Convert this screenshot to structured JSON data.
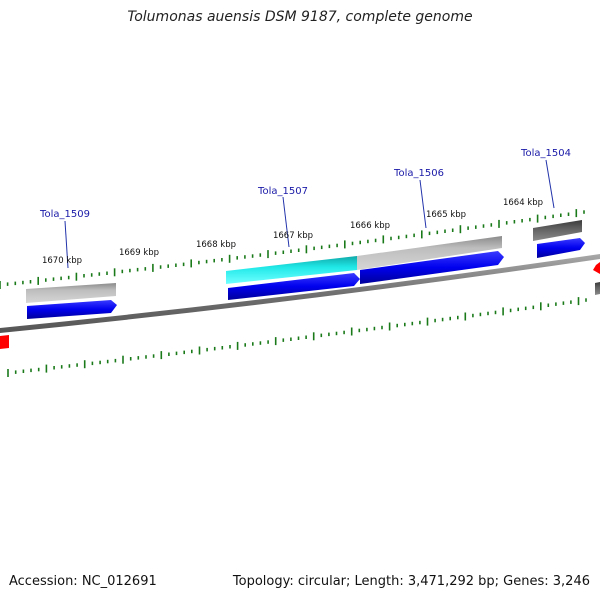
{
  "title": "Tolumonas auensis DSM 9187, complete genome",
  "footer": {
    "accession": "Accession: NC_012691",
    "topology": "Topology: circular; Length: 3,471,292 bp; Genes: 3,246"
  },
  "scale_labels": [
    "1664 kbp",
    "1665 kbp",
    "1666 kbp",
    "1667 kbp",
    "1668 kbp",
    "1669 kbp",
    "1670 kbp"
  ],
  "gene_labels": [
    "Tola_1504",
    "Tola_1506",
    "Tola_1507",
    "Tola_1509"
  ],
  "colors": {
    "backbone": "#808080",
    "cds": "#0000ee",
    "gene_gray": "#b4b4b4",
    "gene_dark": "#5a5a5a",
    "gene_cyan": "#1ee6e6",
    "marker_red": "#ff0000",
    "tick": "#1a7a1a",
    "label_link": "#2233aa"
  }
}
